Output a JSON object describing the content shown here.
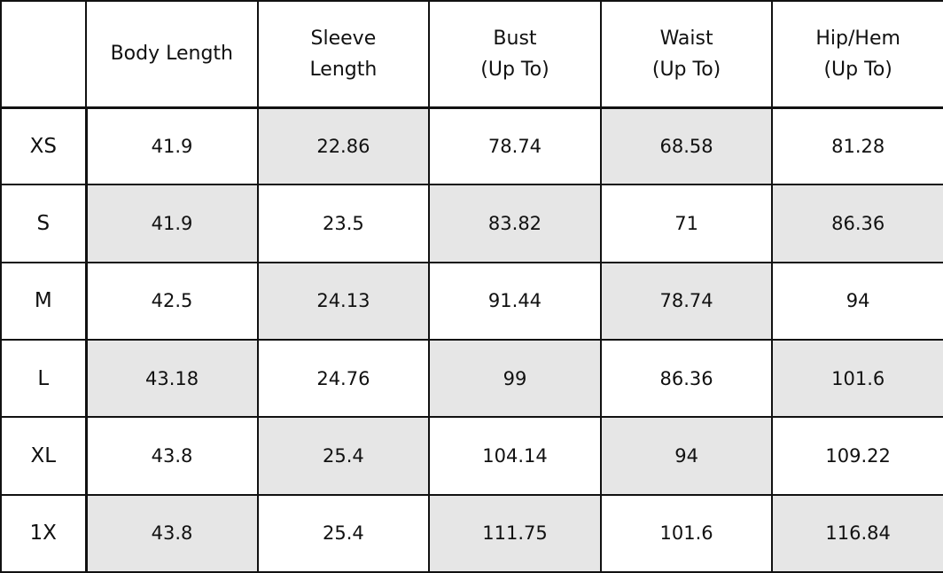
{
  "columns": [
    {
      "line1": "",
      "line2": ""
    },
    {
      "line1": "Body Length",
      "line2": ""
    },
    {
      "line1": "Sleeve",
      "line2": "Length"
    },
    {
      "line1": "Bust",
      "line2": "(Up To)"
    },
    {
      "line1": "Waist",
      "line2": "(Up To)"
    },
    {
      "line1": "Hip/Hem",
      "line2": "(Up To)"
    }
  ],
  "rows": [
    {
      "size": "XS",
      "values": [
        "41.9",
        "22.86",
        "78.74",
        "68.58",
        "81.28"
      ]
    },
    {
      "size": "S",
      "values": [
        "41.9",
        "23.5",
        "83.82",
        "71",
        "86.36"
      ]
    },
    {
      "size": "M",
      "values": [
        "42.5",
        "24.13",
        "91.44",
        "78.74",
        "94"
      ]
    },
    {
      "size": "L",
      "values": [
        "43.18",
        "24.76",
        "99",
        "86.36",
        "101.6"
      ]
    },
    {
      "size": "XL",
      "values": [
        "43.8",
        "25.4",
        "104.14",
        "94",
        "109.22"
      ]
    },
    {
      "size": "1X",
      "values": [
        "43.8",
        "25.4",
        "111.75",
        "101.6",
        "116.84"
      ]
    }
  ],
  "colors": {
    "shade": "#e6e6e6",
    "border": "#111111"
  }
}
